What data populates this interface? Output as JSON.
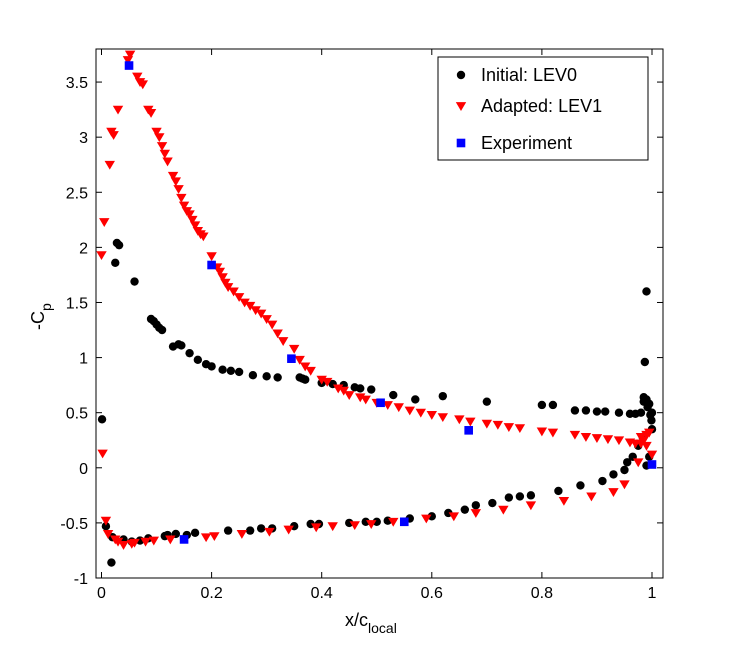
{
  "chart_data": {
    "type": "scatter",
    "title": "",
    "xlabel": "x/c",
    "xlabel_sub": "local",
    "ylabel": "-C",
    "ylabel_sub": "p",
    "xlim": [
      -0.01,
      1.02
    ],
    "ylim": [
      -1,
      3.8
    ],
    "xticks": [
      0,
      0.2,
      0.4,
      0.6,
      0.8,
      1
    ],
    "xtick_labels": [
      "0",
      "0.2",
      "0.4",
      "0.6",
      "0.8",
      "1"
    ],
    "yticks": [
      -1,
      -0.5,
      0,
      0.5,
      1,
      1.5,
      2,
      2.5,
      3,
      3.5
    ],
    "ytick_labels": [
      "-1",
      "-0.5",
      "0",
      "0.5",
      "1",
      "1.5",
      "2",
      "2.5",
      "3",
      "3.5"
    ],
    "grid": false,
    "legend_position": "top-right",
    "series": [
      {
        "name": "Initial: LEV0",
        "marker": "circle",
        "color": "#000000",
        "points": [
          [
            0.001,
            0.44
          ],
          [
            0.008,
            -0.53
          ],
          [
            0.018,
            -0.86
          ],
          [
            0.02,
            -0.63
          ],
          [
            0.025,
            1.86
          ],
          [
            0.028,
            2.04
          ],
          [
            0.032,
            2.02
          ],
          [
            0.04,
            -0.65
          ],
          [
            0.055,
            -0.67
          ],
          [
            0.06,
            1.69
          ],
          [
            0.07,
            -0.66
          ],
          [
            0.085,
            -0.64
          ],
          [
            0.09,
            1.35
          ],
          [
            0.095,
            1.33
          ],
          [
            0.1,
            1.3
          ],
          [
            0.105,
            1.27
          ],
          [
            0.11,
            1.25
          ],
          [
            0.115,
            -0.62
          ],
          [
            0.12,
            -0.61
          ],
          [
            0.13,
            1.1
          ],
          [
            0.135,
            -0.6
          ],
          [
            0.14,
            1.12
          ],
          [
            0.145,
            1.11
          ],
          [
            0.155,
            -0.61
          ],
          [
            0.16,
            1.04
          ],
          [
            0.17,
            -0.59
          ],
          [
            0.175,
            0.98
          ],
          [
            0.19,
            0.94
          ],
          [
            0.2,
            0.92
          ],
          [
            0.22,
            0.89
          ],
          [
            0.23,
            -0.57
          ],
          [
            0.235,
            0.88
          ],
          [
            0.25,
            0.87
          ],
          [
            0.27,
            -0.57
          ],
          [
            0.275,
            0.84
          ],
          [
            0.29,
            -0.55
          ],
          [
            0.3,
            0.83
          ],
          [
            0.31,
            -0.55
          ],
          [
            0.32,
            0.82
          ],
          [
            0.35,
            -0.53
          ],
          [
            0.36,
            0.82
          ],
          [
            0.365,
            0.81
          ],
          [
            0.37,
            0.8
          ],
          [
            0.38,
            -0.51
          ],
          [
            0.395,
            -0.51
          ],
          [
            0.4,
            0.77
          ],
          [
            0.42,
            0.76
          ],
          [
            0.44,
            0.75
          ],
          [
            0.45,
            -0.5
          ],
          [
            0.46,
            0.73
          ],
          [
            0.47,
            0.72
          ],
          [
            0.48,
            -0.49
          ],
          [
            0.49,
            0.71
          ],
          [
            0.5,
            -0.49
          ],
          [
            0.52,
            -0.48
          ],
          [
            0.53,
            0.66
          ],
          [
            0.56,
            -0.46
          ],
          [
            0.57,
            0.62
          ],
          [
            0.6,
            -0.44
          ],
          [
            0.62,
            0.65
          ],
          [
            0.63,
            -0.41
          ],
          [
            0.66,
            -0.38
          ],
          [
            0.68,
            -0.34
          ],
          [
            0.7,
            0.6
          ],
          [
            0.71,
            -0.32
          ],
          [
            0.74,
            -0.27
          ],
          [
            0.76,
            -0.26
          ],
          [
            0.78,
            -0.25
          ],
          [
            0.8,
            0.57
          ],
          [
            0.82,
            0.57
          ],
          [
            0.83,
            -0.21
          ],
          [
            0.86,
            0.52
          ],
          [
            0.87,
            -0.16
          ],
          [
            0.88,
            0.52
          ],
          [
            0.9,
            0.51
          ],
          [
            0.91,
            -0.12
          ],
          [
            0.915,
            0.51
          ],
          [
            0.93,
            -0.06
          ],
          [
            0.94,
            0.5
          ],
          [
            0.95,
            -0.02
          ],
          [
            0.955,
            0.05
          ],
          [
            0.96,
            0.49
          ],
          [
            0.965,
            0.1
          ],
          [
            0.97,
            0.49
          ],
          [
            0.975,
            0.2
          ],
          [
            0.98,
            0.5
          ],
          [
            0.983,
            0.28
          ],
          [
            0.985,
            0.6
          ],
          [
            0.987,
            0.96
          ],
          [
            0.99,
            1.6
          ],
          [
            0.992,
            0.55
          ],
          [
            0.995,
            0.58
          ],
          [
            0.997,
            0.48
          ],
          [
            0.999,
            0.43
          ],
          [
            1.0,
            0.5
          ],
          [
            0.99,
            0.02
          ],
          [
            0.995,
            0.1
          ],
          [
            1.0,
            0.35
          ],
          [
            0.985,
            0.64
          ],
          [
            0.99,
            0.62
          ]
        ]
      },
      {
        "name": "Adapted: LEV1",
        "marker": "triangle-down",
        "color": "#ff0000",
        "points": [
          [
            0.0,
            1.93
          ],
          [
            0.002,
            0.13
          ],
          [
            0.005,
            2.23
          ],
          [
            0.008,
            -0.48
          ],
          [
            0.012,
            -0.6
          ],
          [
            0.015,
            2.75
          ],
          [
            0.018,
            3.05
          ],
          [
            0.022,
            3.02
          ],
          [
            0.025,
            -0.65
          ],
          [
            0.03,
            3.25
          ],
          [
            0.03,
            -0.67
          ],
          [
            0.04,
            -0.7
          ],
          [
            0.048,
            3.7
          ],
          [
            0.052,
            3.75
          ],
          [
            0.055,
            -0.69
          ],
          [
            0.06,
            -0.68
          ],
          [
            0.065,
            3.55
          ],
          [
            0.07,
            3.5
          ],
          [
            0.075,
            3.48
          ],
          [
            0.08,
            -0.67
          ],
          [
            0.085,
            3.25
          ],
          [
            0.09,
            3.22
          ],
          [
            0.095,
            -0.66
          ],
          [
            0.1,
            3.05
          ],
          [
            0.105,
            3.0
          ],
          [
            0.11,
            2.92
          ],
          [
            0.115,
            2.85
          ],
          [
            0.12,
            2.78
          ],
          [
            0.125,
            -0.65
          ],
          [
            0.13,
            2.65
          ],
          [
            0.135,
            2.6
          ],
          [
            0.14,
            2.53
          ],
          [
            0.145,
            2.45
          ],
          [
            0.15,
            2.38
          ],
          [
            0.155,
            2.33
          ],
          [
            0.16,
            2.3
          ],
          [
            0.165,
            2.25
          ],
          [
            0.17,
            2.2
          ],
          [
            0.175,
            2.15
          ],
          [
            0.18,
            2.12
          ],
          [
            0.185,
            2.1
          ],
          [
            0.19,
            -0.63
          ],
          [
            0.2,
            1.92
          ],
          [
            0.205,
            -0.62
          ],
          [
            0.21,
            1.82
          ],
          [
            0.215,
            1.78
          ],
          [
            0.22,
            1.73
          ],
          [
            0.225,
            1.68
          ],
          [
            0.23,
            1.64
          ],
          [
            0.24,
            1.6
          ],
          [
            0.25,
            1.55
          ],
          [
            0.255,
            -0.6
          ],
          [
            0.26,
            1.5
          ],
          [
            0.27,
            1.47
          ],
          [
            0.28,
            1.43
          ],
          [
            0.29,
            1.4
          ],
          [
            0.3,
            1.35
          ],
          [
            0.305,
            -0.58
          ],
          [
            0.31,
            1.3
          ],
          [
            0.32,
            1.22
          ],
          [
            0.33,
            1.15
          ],
          [
            0.34,
            -0.56
          ],
          [
            0.35,
            1.08
          ],
          [
            0.36,
            0.98
          ],
          [
            0.37,
            0.92
          ],
          [
            0.38,
            0.88
          ],
          [
            0.39,
            -0.54
          ],
          [
            0.4,
            0.8
          ],
          [
            0.41,
            0.78
          ],
          [
            0.42,
            -0.53
          ],
          [
            0.43,
            0.72
          ],
          [
            0.44,
            0.7
          ],
          [
            0.45,
            0.66
          ],
          [
            0.46,
            -0.52
          ],
          [
            0.47,
            0.64
          ],
          [
            0.48,
            0.62
          ],
          [
            0.49,
            -0.51
          ],
          [
            0.5,
            0.59
          ],
          [
            0.52,
            0.57
          ],
          [
            0.53,
            -0.49
          ],
          [
            0.54,
            0.55
          ],
          [
            0.56,
            0.52
          ],
          [
            0.58,
            0.5
          ],
          [
            0.59,
            -0.46
          ],
          [
            0.6,
            0.48
          ],
          [
            0.62,
            0.46
          ],
          [
            0.64,
            -0.44
          ],
          [
            0.65,
            0.44
          ],
          [
            0.67,
            0.42
          ],
          [
            0.68,
            -0.41
          ],
          [
            0.7,
            0.4
          ],
          [
            0.72,
            0.39
          ],
          [
            0.73,
            -0.38
          ],
          [
            0.74,
            0.37
          ],
          [
            0.76,
            0.36
          ],
          [
            0.78,
            -0.34
          ],
          [
            0.8,
            0.33
          ],
          [
            0.82,
            0.32
          ],
          [
            0.84,
            -0.3
          ],
          [
            0.86,
            0.3
          ],
          [
            0.88,
            0.28
          ],
          [
            0.89,
            -0.26
          ],
          [
            0.9,
            0.27
          ],
          [
            0.92,
            0.26
          ],
          [
            0.93,
            -0.22
          ],
          [
            0.94,
            0.25
          ],
          [
            0.95,
            -0.15
          ],
          [
            0.96,
            0.23
          ],
          [
            0.97,
            0.22
          ],
          [
            0.975,
            0.05
          ],
          [
            0.98,
            0.22
          ],
          [
            0.985,
            0.25
          ],
          [
            0.99,
            0.3
          ],
          [
            0.995,
            0.32
          ],
          [
            1.0,
            0.12
          ],
          [
            0.99,
            0.2
          ],
          [
            0.98,
            0.28
          ]
        ]
      },
      {
        "name": "Experiment",
        "marker": "square",
        "color": "#0000ff",
        "points": [
          [
            0.05,
            3.65
          ],
          [
            0.2,
            1.84
          ],
          [
            0.345,
            0.99
          ],
          [
            0.507,
            0.59
          ],
          [
            0.667,
            0.34
          ],
          [
            1.0,
            0.03
          ],
          [
            0.15,
            -0.65
          ],
          [
            0.55,
            -0.49
          ]
        ]
      }
    ]
  }
}
